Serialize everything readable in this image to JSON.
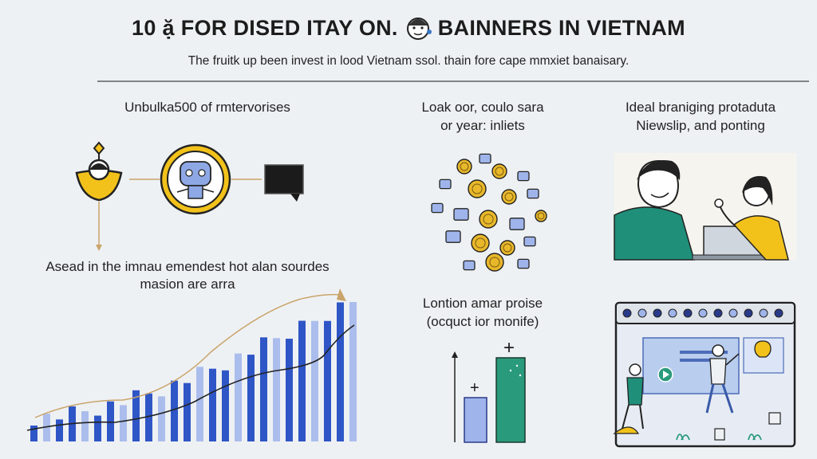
{
  "header": {
    "title_left": "10 ặ",
    "title_mid": "FOR DISED ITAY ON.",
    "title_right": "BAINNERS IN VIETNAM",
    "subtitle": "The fruitk up been invest in lood Vietnam ssol. thain fore cape mmxiet banaisary."
  },
  "panels": {
    "left_top_caption": "Unbulka500 of rmtervorises",
    "left_mid_caption_1": "Asead in the imnau emendest hot alan sourdes",
    "left_mid_caption_2": "masion are arra",
    "center_top_caption_1": "Loak oor, coulo sara",
    "center_top_caption_2": "or year: inliets",
    "center_bottom_caption_1": "Lontion amar proise",
    "center_bottom_caption_2": "(ocquct ior monife)",
    "right_top_caption_1": "Ideal braniging protaduta",
    "right_top_caption_2": "Niewslip, and ponting",
    "small_bars": {
      "plus_1": "+",
      "plus_2": "+"
    }
  },
  "colors": {
    "accent_yellow": "#f2c21b",
    "bar_blue": "#2f56c6",
    "bar_light": "#9fb4ea",
    "green": "#2a9a7c",
    "teal": "#1f8f7a",
    "coin": "#e8b82a"
  },
  "icons": [
    "bulb-icon",
    "coin-icon",
    "chat-bubble-icon",
    "robot-icon",
    "laptop-icon"
  ]
}
